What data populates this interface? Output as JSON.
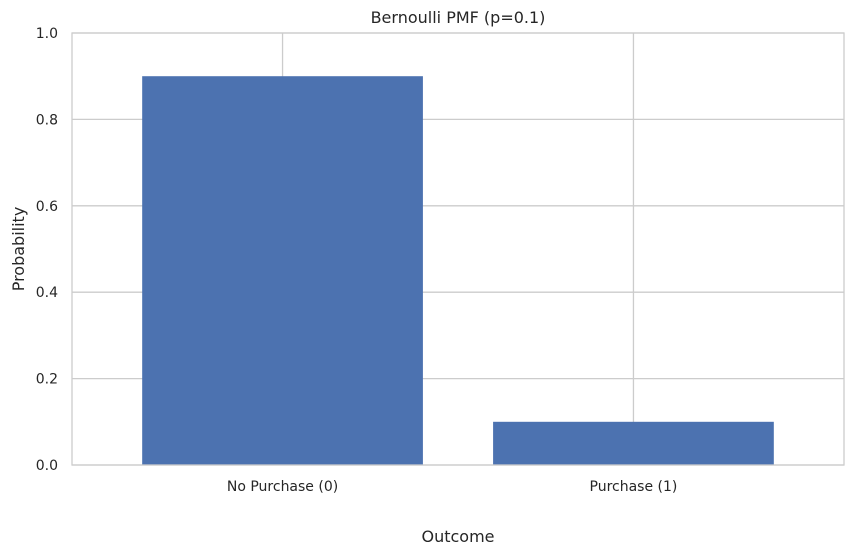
{
  "chart_data": {
    "type": "bar",
    "title": "Bernoulli PMF (p=0.1)",
    "xlabel": "Outcome",
    "ylabel": "Probability",
    "categories": [
      "No Purchase (0)",
      "Purchase (1)"
    ],
    "values": [
      0.9,
      0.1
    ],
    "ylim": [
      0,
      1
    ],
    "yticks": [
      "0.0",
      "0.2",
      "0.4",
      "0.6",
      "0.8",
      "1.0"
    ],
    "grid": true,
    "bar_color": "#4c72b0",
    "grid_color": "#cccccc"
  }
}
